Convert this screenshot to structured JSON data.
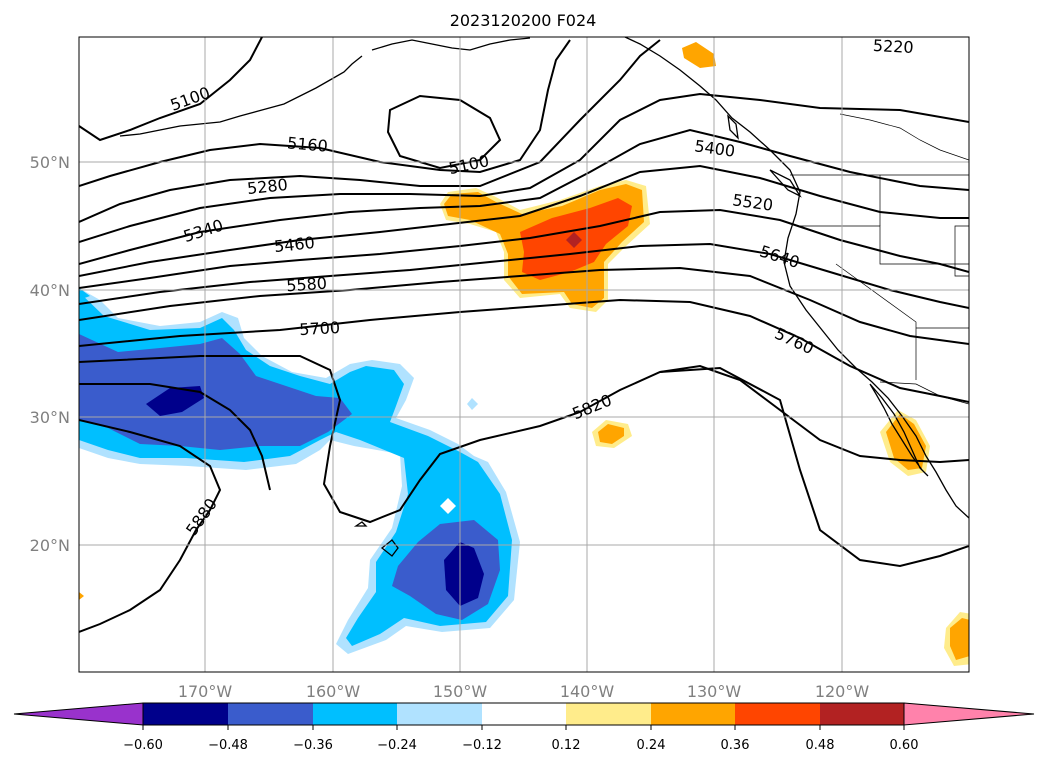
{
  "title": "2023120200 F024",
  "map": {
    "projection": "Mercator",
    "lon_range": [
      -180,
      -110
    ],
    "lat_range": [
      10,
      60
    ],
    "lat_ticks": [
      {
        "v": 20,
        "label": "20°N"
      },
      {
        "v": 30,
        "label": "30°N"
      },
      {
        "v": 40,
        "label": "40°N"
      },
      {
        "v": 50,
        "label": "50°N"
      }
    ],
    "lon_ticks": [
      {
        "v": -170,
        "label": "170°W"
      },
      {
        "v": -160,
        "label": "160°W"
      },
      {
        "v": -150,
        "label": "150°W"
      },
      {
        "v": -140,
        "label": "140°W"
      },
      {
        "v": -130,
        "label": "130°W"
      },
      {
        "v": -120,
        "label": "120°W"
      }
    ],
    "grid": true
  },
  "contour_labels": [
    "5100",
    "5160",
    "5280",
    "5340",
    "5460",
    "5580",
    "5700",
    "5100",
    "5400",
    "5520",
    "5640",
    "5760",
    "5820",
    "5880",
    "5220"
  ],
  "colorbar": {
    "colors": [
      "#9932cc",
      "#00008b",
      "#3a5ccc",
      "#00bfff",
      "#b0e2ff",
      "#ffffff",
      "#ffec8b",
      "#ffa500",
      "#ff4500",
      "#b22222",
      "#ff82ab"
    ],
    "ticks": [
      "−0.60",
      "−0.48",
      "−0.36",
      "−0.24",
      "−0.12",
      "0.12",
      "0.24",
      "0.36",
      "0.48",
      "0.60"
    ]
  },
  "colors": {
    "neg_light": "#b0e2ff",
    "neg_mid": "#00bfff",
    "neg_strong": "#3a5ccc",
    "neg_max": "#00008b",
    "pos_light": "#ffec8b",
    "pos_mid": "#ffa500",
    "pos_strong": "#ff4500",
    "pos_max": "#b22222"
  }
}
